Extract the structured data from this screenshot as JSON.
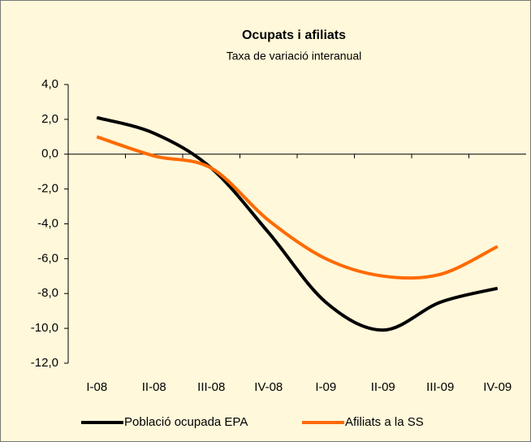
{
  "chart_data": {
    "type": "line",
    "title": "Ocupats i afiliats",
    "subtitle": "Taxa de variació interanual",
    "categories": [
      "I-08",
      "II-08",
      "III-08",
      "IV-08",
      "I-09",
      "II-09",
      "III-09",
      "IV-09"
    ],
    "series": [
      {
        "name": "Població ocupada EPA",
        "color": "#000000",
        "values": [
          2.1,
          1.2,
          -0.8,
          -4.5,
          -8.5,
          -10.1,
          -8.5,
          -7.7
        ]
      },
      {
        "name": "Afiliats a la SS",
        "color": "#ff6a00",
        "values": [
          1.0,
          -0.1,
          -0.8,
          -3.8,
          -6.0,
          -7.0,
          -6.9,
          -5.3
        ]
      }
    ],
    "ylim": [
      -12,
      4
    ],
    "yticks": [
      {
        "value": -12,
        "label": "-12,0"
      },
      {
        "value": -10,
        "label": "-10,0"
      },
      {
        "value": -8,
        "label": "-8,0"
      },
      {
        "value": -6,
        "label": "-6,0"
      },
      {
        "value": -4,
        "label": "-4,0"
      },
      {
        "value": -2,
        "label": "-2,0"
      },
      {
        "value": 0,
        "label": "0,0"
      },
      {
        "value": 2,
        "label": "2,0"
      },
      {
        "value": 4,
        "label": "4,0"
      }
    ],
    "smooth": true,
    "legend": "bottom"
  }
}
